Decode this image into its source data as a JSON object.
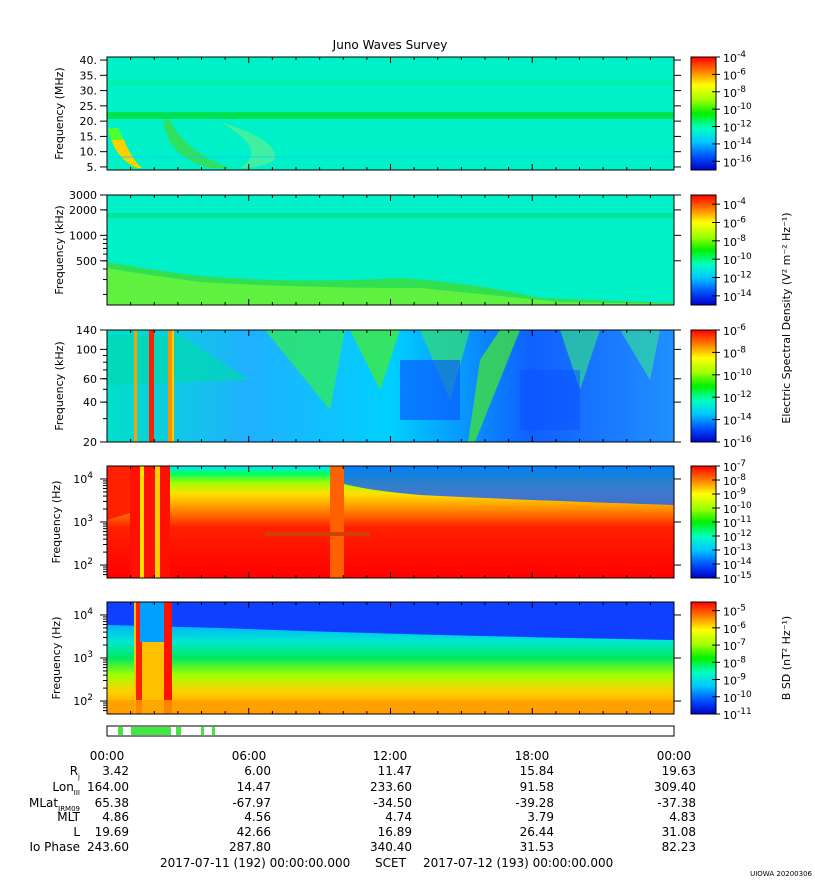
{
  "chart_data": {
    "type": "heatmap",
    "title": "Juno Waves Survey",
    "panels": [
      {
        "ylabel": "Frequency (MHz)",
        "yscale": "linear",
        "ylim": [
          4,
          41
        ],
        "yticks": [
          {
            "v": 40,
            "label": "40."
          },
          {
            "v": 35,
            "label": "35."
          },
          {
            "v": 30,
            "label": "30."
          },
          {
            "v": 25,
            "label": "25."
          },
          {
            "v": 20,
            "label": "20."
          },
          {
            "v": 15,
            "label": "15."
          },
          {
            "v": 10,
            "label": "10."
          },
          {
            "v": 5,
            "label": "5."
          }
        ],
        "cbar": {
          "min": -17,
          "max": -4,
          "ticks": [
            -4,
            -6,
            -8,
            -10,
            -12,
            -14,
            -16
          ]
        }
      },
      {
        "ylabel": "Frequency (kHz)",
        "yscale": "log",
        "ylim": [
          150,
          3000
        ],
        "yticks": [
          {
            "v": 3000,
            "label": "3000"
          },
          {
            "v": 2000,
            "label": "2000"
          },
          {
            "v": 1000,
            "label": "1000"
          },
          {
            "v": 500,
            "label": "500"
          }
        ],
        "cbar": {
          "min": -15,
          "max": -3,
          "ticks": [
            -4,
            -6,
            -8,
            -10,
            -12,
            -14
          ]
        }
      },
      {
        "ylabel": "Frequency (kHz)",
        "yscale": "log",
        "ylim": [
          20,
          140
        ],
        "yticks": [
          {
            "v": 140,
            "label": "140"
          },
          {
            "v": 100,
            "label": "100"
          },
          {
            "v": 60,
            "label": "60"
          },
          {
            "v": 40,
            "label": "40"
          },
          {
            "v": 20,
            "label": "20"
          }
        ],
        "cbar": {
          "min": -16,
          "max": -6,
          "ticks": [
            -6,
            -8,
            -10,
            -12,
            -14,
            -16
          ]
        }
      },
      {
        "ylabel": "Frequency (Hz)",
        "yscale": "log",
        "ylim": [
          50,
          20000
        ],
        "yticks": [
          {
            "v": 10000,
            "label": "10",
            "exp": "4"
          },
          {
            "v": 1000,
            "label": "10",
            "exp": "3"
          },
          {
            "v": 100,
            "label": "10",
            "exp": "2"
          }
        ],
        "cbar": {
          "min": -15,
          "max": -7,
          "ticks": [
            -7,
            -8,
            -9,
            -10,
            -11,
            -12,
            -13,
            -14,
            -15
          ]
        }
      },
      {
        "ylabel": "Frequency (Hz)",
        "yscale": "log",
        "ylim": [
          50,
          20000
        ],
        "yticks": [
          {
            "v": 10000,
            "label": "10",
            "exp": "4"
          },
          {
            "v": 1000,
            "label": "10",
            "exp": "3"
          },
          {
            "v": 100,
            "label": "10",
            "exp": "2"
          }
        ],
        "cbar": {
          "min": -11,
          "max": -4.5,
          "ticks": [
            -5,
            -6,
            -7,
            -8,
            -9,
            -10,
            -11
          ]
        }
      }
    ],
    "colorbar_labels": {
      "electric": "Electric Spectral Density (V² m⁻² Hz⁻¹)",
      "magnetic": "B SD (nT² Hz⁻¹)"
    },
    "colorbar_base": "10",
    "x_ticks": [
      "00:00",
      "06:00",
      "12:00",
      "18:00",
      "00:00"
    ],
    "ephemeris": [
      {
        "label": "R",
        "sub": "j",
        "values": [
          "3.42",
          "6.00",
          "11.47",
          "15.84",
          "19.63"
        ]
      },
      {
        "label": "Lon",
        "sub": "III",
        "values": [
          "164.00",
          "14.47",
          "233.60",
          "91.58",
          "309.40"
        ]
      },
      {
        "label": "MLat",
        "sub": "JRM09",
        "values": [
          "65.38",
          "-67.97",
          "-34.50",
          "-39.28",
          "-37.38"
        ]
      },
      {
        "label": "MLT",
        "sub": "",
        "values": [
          "4.86",
          "4.56",
          "4.74",
          "3.79",
          "4.83"
        ]
      },
      {
        "label": "L",
        "sub": "",
        "values": [
          "19.69",
          "42.66",
          "16.89",
          "26.44",
          "31.08"
        ]
      },
      {
        "label": "Io Phase",
        "sub": "",
        "values": [
          "243.60",
          "287.80",
          "340.40",
          "31.53",
          "82.23"
        ]
      }
    ],
    "date_start": "2017-07-11 (192) 00:00:00.000",
    "scet_label": "SCET",
    "date_end": "2017-07-12 (193) 00:00:00.000",
    "footer": "UIOWA 20200306"
  }
}
